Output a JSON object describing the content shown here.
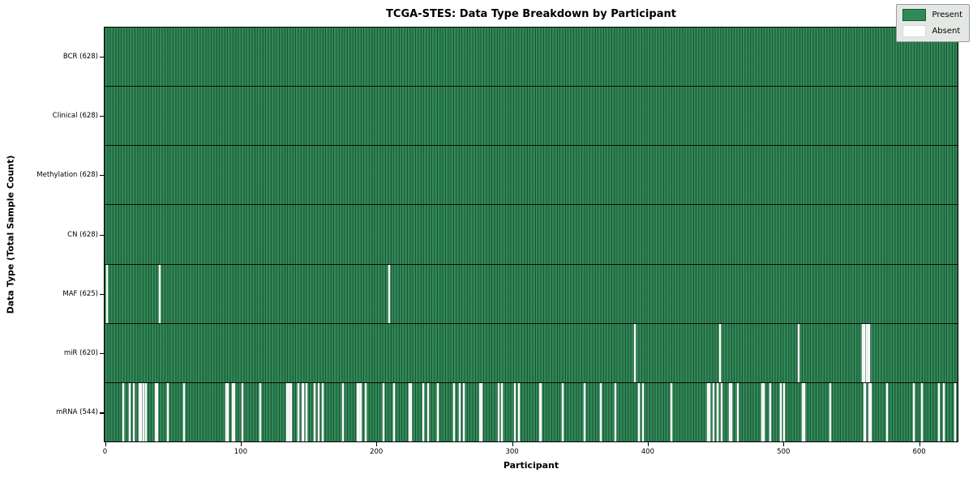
{
  "chart_data": {
    "type": "heatmap",
    "title": "TCGA-STES: Data Type Breakdown by Participant",
    "xlabel": "Participant",
    "ylabel": "Data Type (Total Sample Count)",
    "n_participants": 628,
    "x_ticks": [
      0,
      100,
      200,
      300,
      400,
      500,
      600
    ],
    "grid": false,
    "legend_position": "upper right",
    "colors": {
      "present": "#2e8b57",
      "present_edge": "#1d5438",
      "absent": "#ffffff",
      "legend_bg": "#e4e8e4",
      "border": "#000000"
    },
    "legend": [
      {
        "label": "Present",
        "color": "#2e8b57"
      },
      {
        "label": "Absent",
        "color": "#ffffff"
      }
    ],
    "rows": [
      {
        "name": "BCR",
        "label": "BCR (628)",
        "present_count": 628,
        "absent_indices": []
      },
      {
        "name": "Clinical",
        "label": "Clinical (628)",
        "present_count": 628,
        "absent_indices": []
      },
      {
        "name": "Methylation",
        "label": "Methylation (628)",
        "present_count": 628,
        "absent_indices": []
      },
      {
        "name": "CN",
        "label": "CN (628)",
        "present_count": 628,
        "absent_indices": []
      },
      {
        "name": "MAF",
        "label": "MAF (625)",
        "present_count": 625,
        "absent_indices": [
          1,
          40,
          209
        ]
      },
      {
        "name": "miR",
        "label": "miR (620)",
        "present_count": 620,
        "absent_indices": [
          390,
          453,
          511,
          558,
          559,
          561,
          562,
          563
        ]
      },
      {
        "name": "mRNA",
        "label": "mRNA (544)",
        "present_count": 544,
        "absent_indices": [
          13,
          18,
          21,
          25,
          26,
          28,
          30,
          37,
          38,
          46,
          58,
          89,
          90,
          94,
          95,
          101,
          114,
          134,
          135,
          136,
          137,
          142,
          145,
          146,
          148,
          154,
          157,
          160,
          175,
          186,
          187,
          188,
          192,
          205,
          213,
          224,
          225,
          234,
          238,
          245,
          257,
          261,
          264,
          276,
          277,
          290,
          292,
          302,
          305,
          320,
          321,
          337,
          353,
          365,
          376,
          393,
          396,
          417,
          444,
          445,
          448,
          451,
          454,
          460,
          461,
          466,
          484,
          485,
          490,
          498,
          500,
          514,
          515,
          534,
          559,
          560,
          563,
          564,
          576,
          596,
          602,
          614,
          618,
          626
        ]
      }
    ]
  }
}
